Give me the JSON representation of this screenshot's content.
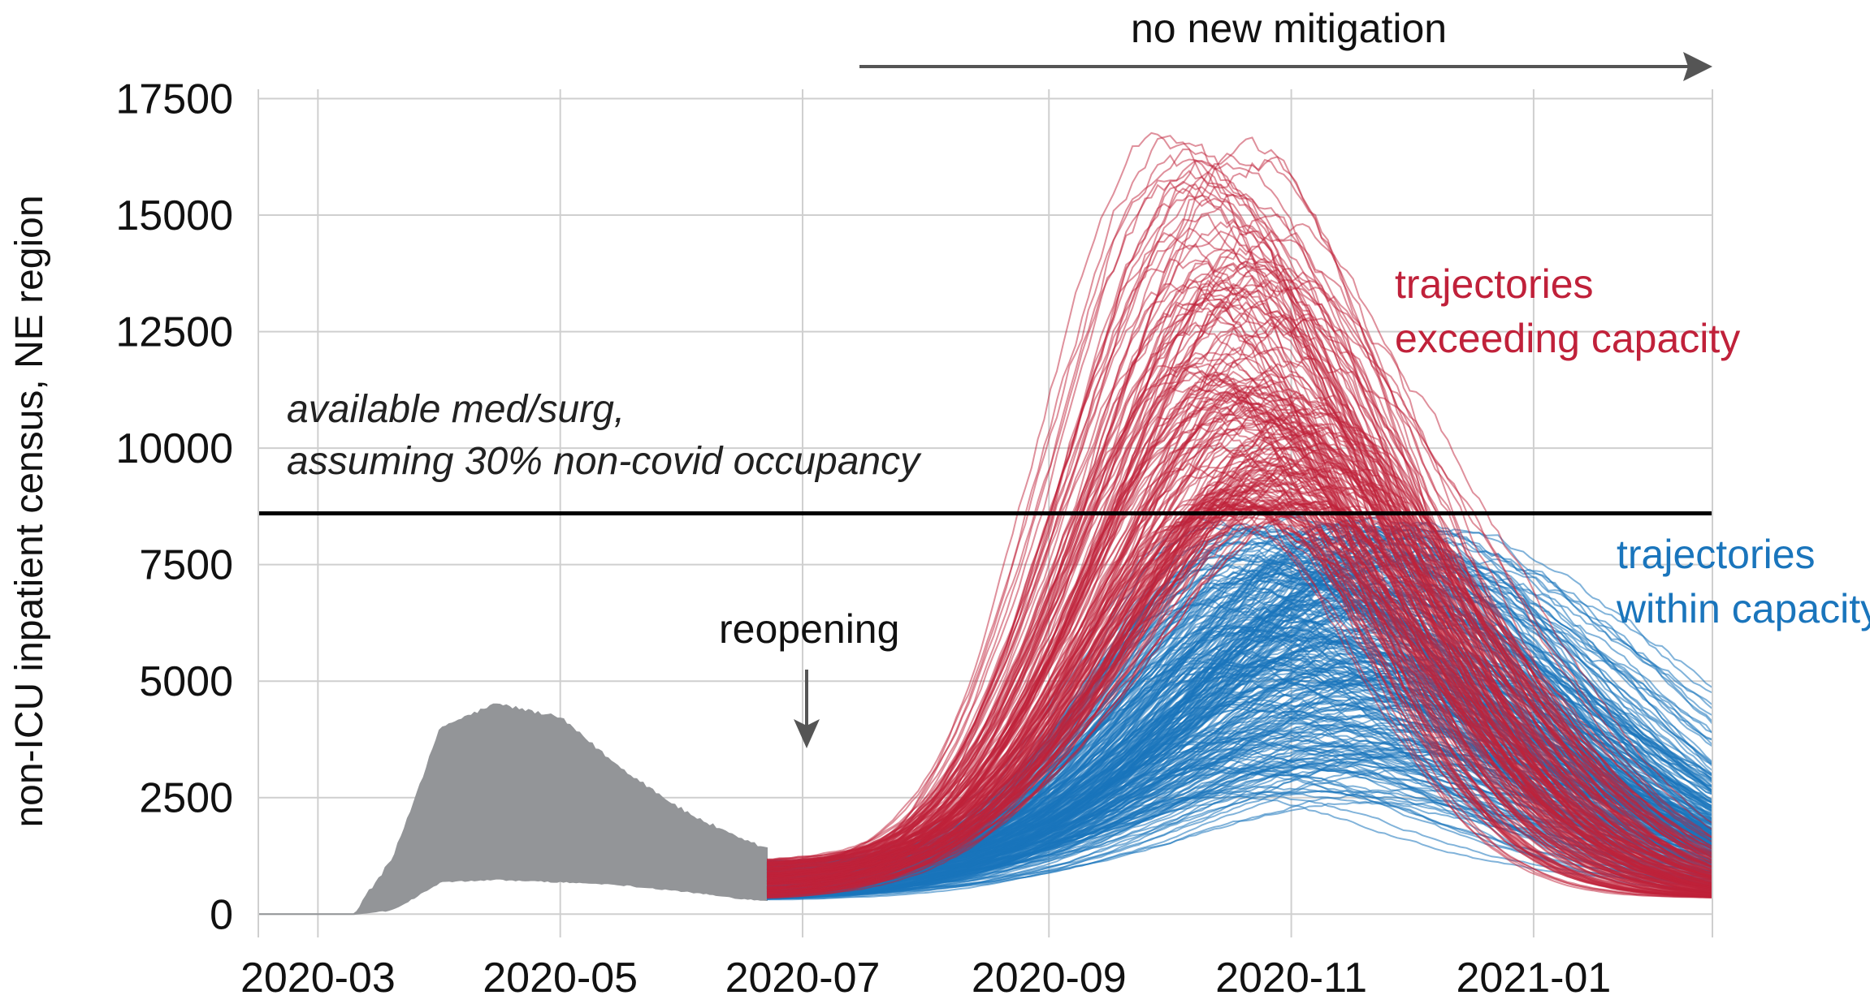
{
  "chart_data": {
    "type": "line",
    "ylabel": "non-ICU inpatient census, NE region",
    "y_ticks": [
      "0",
      "2500",
      "5000",
      "7500",
      "10000",
      "12500",
      "15000",
      "17500"
    ],
    "ylim": [
      0,
      17500
    ],
    "x_ticks": [
      "2020-03",
      "2020-05",
      "2020-07",
      "2020-09",
      "2020-11",
      "2021-01"
    ],
    "xlim": [
      "2020-02-15",
      "2021-02-15"
    ],
    "grid": true,
    "capacity_line": {
      "value": 8600,
      "label_line1": "available med/surg,",
      "label_line2": "assuming 30% non-covid occupancy"
    },
    "annotations": {
      "reopening": "reopening",
      "no_new_mitigation": "no new mitigation",
      "red_line1": "trajectories",
      "red_line2": "exceeding capacity",
      "blue_line1": "trajectories",
      "blue_line2": "within capacity"
    },
    "colors": {
      "exceeding": "#c0213a",
      "within": "#1a75bc",
      "historical": "#939598",
      "capacity": "#000000",
      "grid": "#cfcfcf",
      "arrow": "#555555"
    },
    "historical_band": {
      "description": "range of historical census estimates",
      "dates": [
        "2020-02-15",
        "2020-03-10",
        "2020-03-20",
        "2020-04-01",
        "2020-04-15",
        "2020-05-01",
        "2020-05-15",
        "2020-06-01",
        "2020-06-15",
        "2020-06-22"
      ],
      "lower": [
        0,
        0,
        100,
        700,
        750,
        700,
        650,
        500,
        350,
        300
      ],
      "upper": [
        0,
        0,
        1200,
        4000,
        4500,
        4200,
        3200,
        2200,
        1600,
        1400
      ]
    },
    "trajectory_summary": {
      "start_date": "2020-06-22",
      "end_date": "2021-02-15",
      "n_trajectories": 480,
      "start_range": [
        300,
        1400
      ],
      "exceeding_peak_range": [
        8700,
        16700
      ],
      "exceeding_peak_dates": [
        "2020-09-25",
        "2020-11-20"
      ],
      "within_peak_range": [
        2300,
        8600
      ],
      "within_peak_dates": [
        "2020-10-10",
        "2020-12-10"
      ],
      "end_range": [
        400,
        4000
      ]
    }
  }
}
